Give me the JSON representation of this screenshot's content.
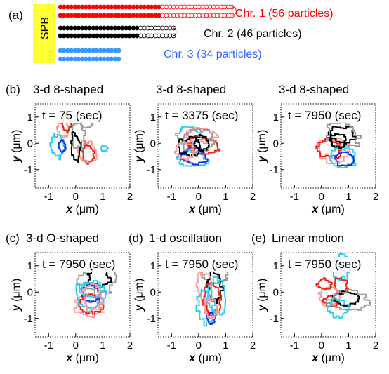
{
  "panel_a": {
    "label": "(a)",
    "spb": "SPB",
    "chromosomes": [
      {
        "name": "Chr. 1 (56 particles)",
        "color": "#ff0000",
        "filled": 28,
        "open": 20
      },
      {
        "name": "Chr. 2 (46 particles)",
        "color": "#000000",
        "filled": 22,
        "open": 10
      },
      {
        "name": "Chr. 3 (34 particles)",
        "color": "#3399ff",
        "filled": 17,
        "open": 0
      }
    ]
  },
  "panels": [
    {
      "label": "(b)",
      "title": "3-d 8-shaped",
      "time": "t = 75 (sec)",
      "pattern": "8a"
    },
    {
      "label": "",
      "title": "3-d 8-shaped",
      "time": "t = 3375 (sec)",
      "pattern": "8b"
    },
    {
      "label": "",
      "title": "3-d 8-shaped",
      "time": "t = 7950 (sec)",
      "pattern": "8c"
    },
    {
      "label": "(c)",
      "title": "3-d O-shaped",
      "time": "t = 7950 (sec)",
      "pattern": "O"
    },
    {
      "label": "(d)",
      "title": "1-d oscillation",
      "time": "t = 7950 (sec)",
      "pattern": "osc"
    },
    {
      "label": "(e)",
      "title": "Linear motion",
      "time": "t = 7950 (sec)",
      "pattern": "lin"
    }
  ],
  "axes": {
    "xlabel_var": "x",
    "xlabel_unit": "(μm)",
    "ylabel_var": "y",
    "ylabel_unit": "(μm)",
    "xticks": [
      "-1",
      "0",
      "1",
      "2"
    ],
    "yticks": [
      "1",
      "0",
      "-1"
    ],
    "xlim": [
      -1.5,
      2
    ],
    "ylim": [
      -1.7,
      1.5
    ]
  },
  "colors": {
    "spb": "#ffff33",
    "red": "#ee2211",
    "pink": "#ff9999",
    "black": "#000000",
    "gray": "#999999",
    "blue": "#1133ee",
    "cyan": "#33ccee"
  }
}
